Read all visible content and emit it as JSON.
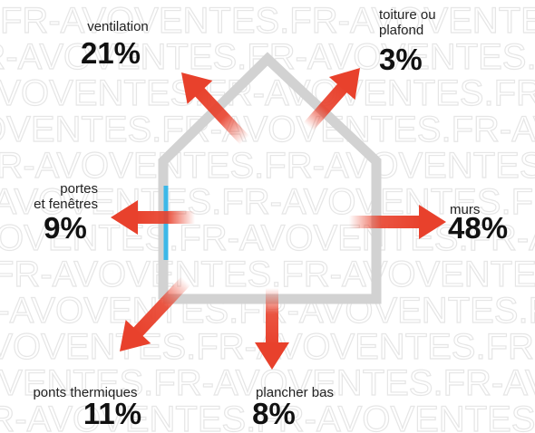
{
  "watermark": "FR-AVOVENTES.",
  "nodes": [
    {
      "label": [
        "ventilation"
      ],
      "value": "21%"
    },
    {
      "label": [
        "toiture ou",
        "plafond"
      ],
      "value": "3%"
    },
    {
      "label": [
        "portes",
        "et fenêtres"
      ],
      "value": "9%"
    },
    {
      "label": [
        "murs"
      ],
      "value": "48%"
    },
    {
      "label": [
        "ponts thermiques"
      ],
      "value": "11%"
    },
    {
      "label": [
        "plancher bas"
      ],
      "value": "8%"
    }
  ]
}
